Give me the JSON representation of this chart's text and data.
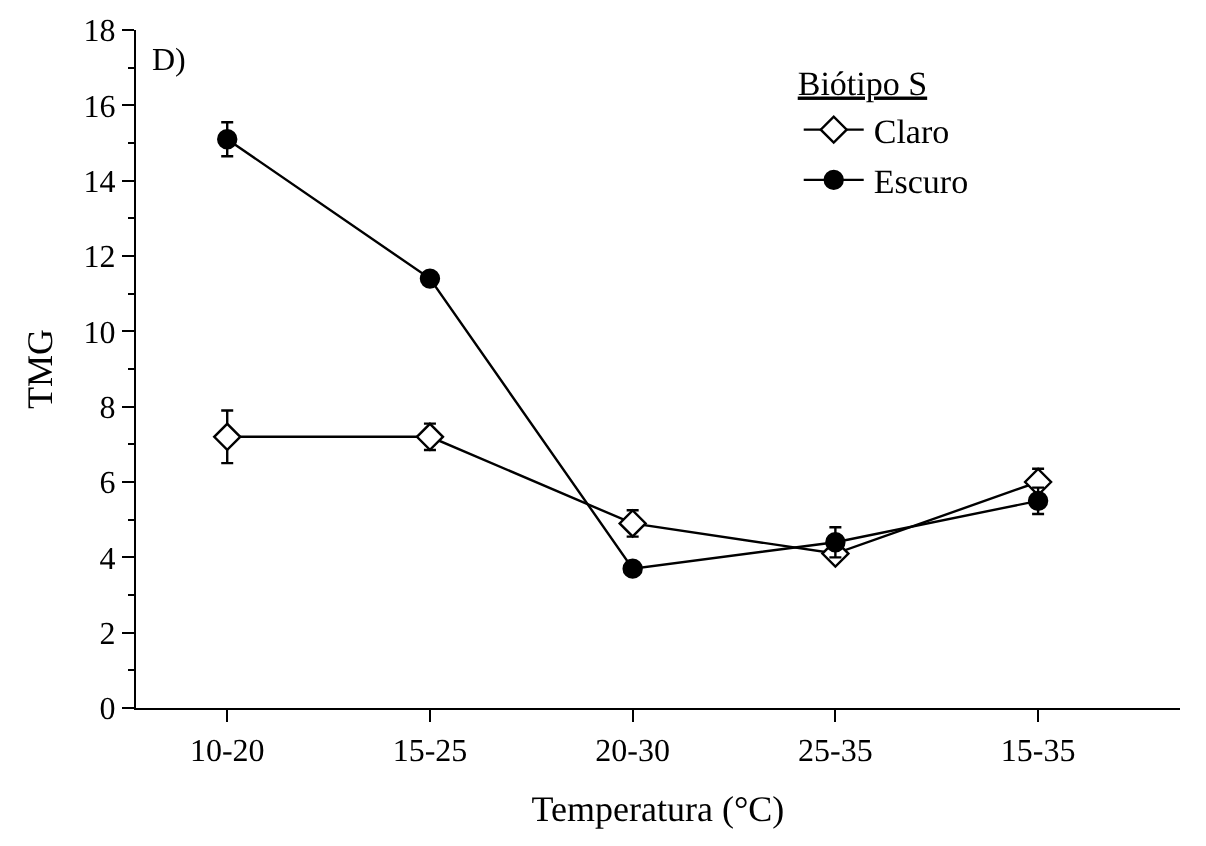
{
  "chart_data": {
    "type": "line",
    "xlabel": "Temperatura (°C)",
    "ylabel": "TMG",
    "legend_title": "Biótipo S",
    "legend": "top right",
    "annotations": [
      "D)"
    ],
    "categories": [
      "10-20",
      "15-25",
      "20-30",
      "25-35",
      "15-35"
    ],
    "ylim": [
      0,
      18
    ],
    "yticks": [
      0,
      2,
      4,
      6,
      8,
      10,
      12,
      14,
      16,
      18
    ],
    "grid": false,
    "series": [
      {
        "name": "Claro",
        "color": "#000000",
        "marker": "diamond",
        "values": [
          7.2,
          7.2,
          4.9,
          4.1,
          6.0
        ],
        "errors": [
          0.7,
          0.35,
          0.35,
          null,
          0.35
        ]
      },
      {
        "name": "Escuro",
        "color": "#000000",
        "marker": "circle",
        "values": [
          15.1,
          11.4,
          3.7,
          4.4,
          5.5
        ],
        "errors": [
          0.45,
          null,
          null,
          0.4,
          0.35
        ]
      }
    ]
  }
}
